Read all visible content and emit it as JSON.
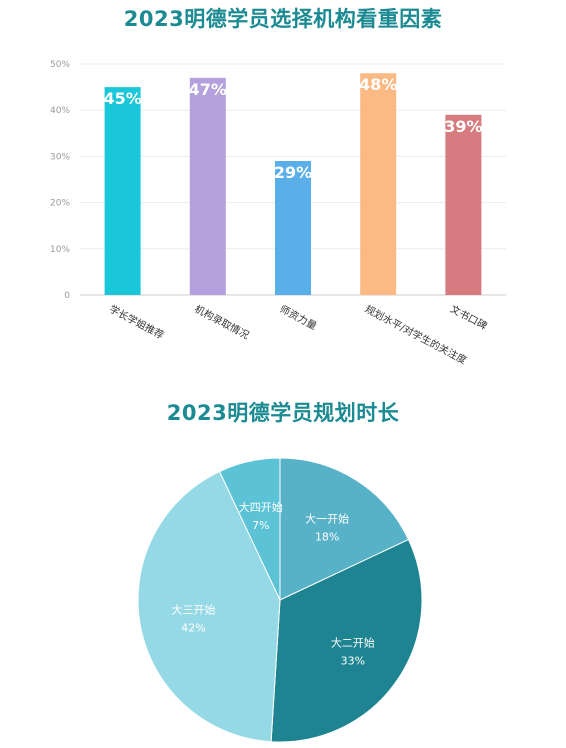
{
  "chart_data": [
    {
      "type": "bar",
      "title": "2023明德学员选择机构看重因素",
      "categories": [
        "学长学姐推荐",
        "机构录取情况",
        "师资力量",
        "规划水平/对学生的关注度",
        "文书口碑"
      ],
      "values": [
        45,
        47,
        29,
        48,
        39
      ],
      "value_labels": [
        "45%",
        "47%",
        "29%",
        "48%",
        "39%"
      ],
      "colors": [
        "#19c7d8",
        "#b3a0dc",
        "#5aafe8",
        "#fbb984",
        "#d67b80"
      ],
      "yticks": [
        "0",
        "10%",
        "20%",
        "30%",
        "40%",
        "50%"
      ],
      "ylim": [
        0,
        50
      ],
      "grid": true,
      "xlabel": "",
      "ylabel": ""
    },
    {
      "type": "pie",
      "title": "2023明德学员规划时长",
      "labels": [
        "大一开始",
        "大二开始",
        "大三开始",
        "大四开始"
      ],
      "values": [
        18,
        33,
        42,
        7
      ],
      "value_labels": [
        "18%",
        "33%",
        "42%",
        "7%"
      ],
      "colors": [
        "#57b1c7",
        "#1e8491",
        "#96d9e6",
        "#5cc3d6"
      ]
    }
  ]
}
